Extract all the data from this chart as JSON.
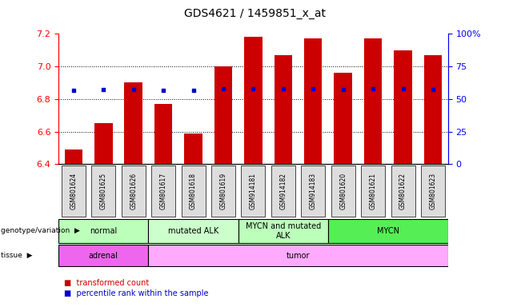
{
  "title": "GDS4621 / 1459851_x_at",
  "samples": [
    "GSM801624",
    "GSM801625",
    "GSM801626",
    "GSM801617",
    "GSM801618",
    "GSM801619",
    "GSM914181",
    "GSM914182",
    "GSM914183",
    "GSM801620",
    "GSM801621",
    "GSM801622",
    "GSM801623"
  ],
  "transformed_count": [
    6.49,
    6.65,
    6.9,
    6.77,
    6.59,
    7.0,
    7.18,
    7.07,
    7.17,
    6.96,
    7.17,
    7.1,
    7.07
  ],
  "percentile_rank_left": [
    6.855,
    6.858,
    6.858,
    6.855,
    6.855,
    6.862,
    6.864,
    6.862,
    6.864,
    6.86,
    6.862,
    6.862,
    6.86
  ],
  "ylim_left": [
    6.4,
    7.2
  ],
  "ylim_right": [
    0,
    100
  ],
  "yticks_left": [
    6.4,
    6.6,
    6.8,
    7.0,
    7.2
  ],
  "yticks_right": [
    0,
    25,
    50,
    75,
    100
  ],
  "ytick_right_labels": [
    "0",
    "25",
    "50",
    "75",
    "100%"
  ],
  "bar_color": "#cc0000",
  "dot_color": "#0000cc",
  "bar_bottom": 6.4,
  "genotype_groups": [
    {
      "label": "normal",
      "start": 0,
      "end": 3,
      "color": "#bbffbb"
    },
    {
      "label": "mutated ALK",
      "start": 3,
      "end": 6,
      "color": "#ccffcc"
    },
    {
      "label": "MYCN and mutated\nALK",
      "start": 6,
      "end": 9,
      "color": "#bbffbb"
    },
    {
      "label": "MYCN",
      "start": 9,
      "end": 13,
      "color": "#55ee55"
    }
  ],
  "tissue_groups": [
    {
      "label": "adrenal",
      "start": 0,
      "end": 3,
      "color": "#ee66ee"
    },
    {
      "label": "tumor",
      "start": 3,
      "end": 13,
      "color": "#ffaaff"
    }
  ],
  "grid_lines": [
    6.6,
    6.8,
    7.0
  ]
}
